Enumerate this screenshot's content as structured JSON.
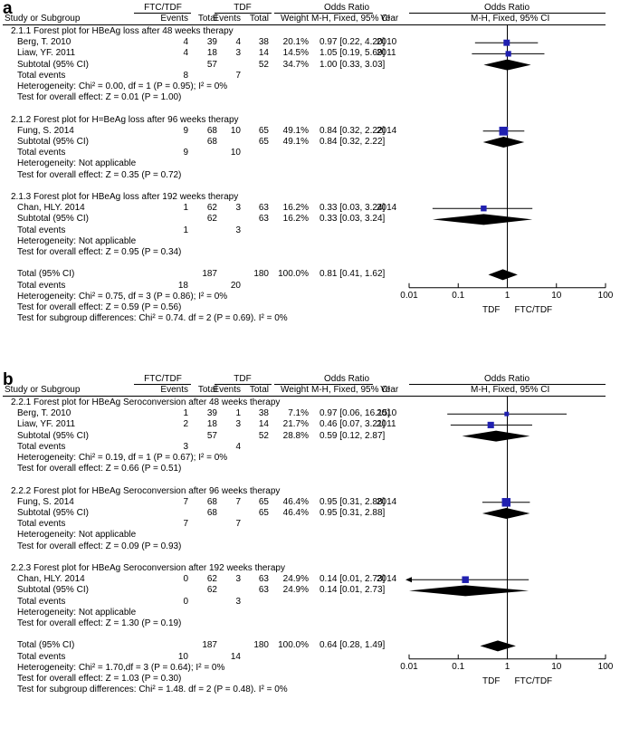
{
  "chart_data": [
    {
      "type": "forest",
      "panel": "a",
      "header": {
        "group1": "FTC/TDF",
        "group2": "TDF",
        "cols": [
          "Study or Subgroup",
          "Events",
          "Total",
          "Events",
          "Total",
          "Weight",
          "M-H, Fixed, 95% CI",
          "Year",
          "M-H, Fixed, 95% CI"
        ],
        "or_title": "Odds Ratio",
        "plot_title": "Odds Ratio"
      },
      "subgroups": [
        {
          "title": "2.1.1 Forest plot for HBeAg loss after 48 weeks therapy",
          "studies": [
            {
              "name": "Berg, T. 2010",
              "e1": "4",
              "t1": "39",
              "e2": "4",
              "t2": "38",
              "weight": "20.1%",
              "ci_text": "0.97 [0.22, 4.20]",
              "year": "2010",
              "or": 0.97,
              "lo": 0.22,
              "hi": 4.2,
              "w": 20.1
            },
            {
              "name": "Liaw, YF. 2011",
              "e1": "4",
              "t1": "18",
              "e2": "3",
              "t2": "14",
              "weight": "14.5%",
              "ci_text": "1.05 [0.19, 5.69]",
              "year": "2011",
              "or": 1.05,
              "lo": 0.19,
              "hi": 5.69,
              "w": 14.5
            }
          ],
          "subtotal": {
            "label": "Subtotal (95% CI)",
            "t1": "57",
            "t2": "52",
            "weight": "34.7%",
            "ci_text": "1.00 [0.33, 3.03]",
            "or": 1.0,
            "lo": 0.33,
            "hi": 3.03
          },
          "total_events": {
            "label": "Total events",
            "e1": "8",
            "e2": "7"
          },
          "heterogeneity": "Heterogeneity: Chi² = 0.00, df = 1 (P = 0.95); I² = 0%",
          "overall": "Test for overall effect: Z = 0.01 (P = 1.00)"
        },
        {
          "title": "2.1.2 Forest plot for H=BeAg loss after 96 weeks therapy",
          "studies": [
            {
              "name": "Fung, S. 2014",
              "e1": "9",
              "t1": "68",
              "e2": "10",
              "t2": "65",
              "weight": "49.1%",
              "ci_text": "0.84 [0.32, 2.22]",
              "year": "2014",
              "or": 0.84,
              "lo": 0.32,
              "hi": 2.22,
              "w": 49.1
            }
          ],
          "subtotal": {
            "label": "Subtotal (95% CI)",
            "t1": "68",
            "t2": "65",
            "weight": "49.1%",
            "ci_text": "0.84 [0.32, 2.22]",
            "or": 0.84,
            "lo": 0.32,
            "hi": 2.22
          },
          "total_events": {
            "label": "Total events",
            "e1": "9",
            "e2": "10"
          },
          "heterogeneity": "Heterogeneity: Not applicable",
          "overall": "Test for overall effect: Z = 0.35 (P = 0.72)"
        },
        {
          "title": "2.1.3 Forest plot for HBeAg loss after 192 weeks therapy",
          "studies": [
            {
              "name": "Chan, HLY. 2014",
              "e1": "1",
              "t1": "62",
              "e2": "3",
              "t2": "63",
              "weight": "16.2%",
              "ci_text": "0.33 [0.03, 3.24]",
              "year": "2014",
              "or": 0.33,
              "lo": 0.03,
              "hi": 3.24,
              "w": 16.2
            }
          ],
          "subtotal": {
            "label": "Subtotal (95% CI)",
            "t1": "62",
            "t2": "63",
            "weight": "16.2%",
            "ci_text": "0.33 [0.03, 3.24]",
            "or": 0.33,
            "lo": 0.03,
            "hi": 3.24
          },
          "total_events": {
            "label": "Total events",
            "e1": "1",
            "e2": "3"
          },
          "heterogeneity": "Heterogeneity: Not applicable",
          "overall": "Test for overall effect: Z = 0.95 (P = 0.34)"
        }
      ],
      "total": {
        "label": "Total (95% CI)",
        "t1": "187",
        "t2": "180",
        "weight": "100.0%",
        "ci_text": "0.81 [0.41, 1.62]",
        "or": 0.81,
        "lo": 0.41,
        "hi": 1.62
      },
      "total_events": {
        "label": "Total events",
        "e1": "18",
        "e2": "20"
      },
      "heterogeneity": "Heterogeneity: Chi² = 0.75, df = 3 (P = 0.86); I² = 0%",
      "overall": "Test for overall effect: Z = 0.59 (P = 0.56)",
      "subgroup_diff": "Test for subgroup differences: Chi² = 0.74. df = 2 (P = 0.69). I² = 0%",
      "axis": {
        "scale": "log",
        "min": 0.01,
        "max": 100,
        "ticks": [
          "0.01",
          "0.1",
          "1",
          "10",
          "100"
        ],
        "left_label": "TDF",
        "right_label": "FTC/TDF"
      }
    },
    {
      "type": "forest",
      "panel": "b",
      "header": {
        "group1": "FTC/TDF",
        "group2": "TDF",
        "cols": [
          "Study or Subgroup",
          "Events",
          "Total",
          "Events",
          "Total",
          "Weight",
          "M-H, Fixed, 95% CI",
          "Year",
          "M-H, Fixed, 95% CI"
        ],
        "or_title": "Odds Ratio",
        "plot_title": "Odds Ratio"
      },
      "subgroups": [
        {
          "title": "2.2.1 Forest plot for HBeAg Seroconversion after 48 weeks therapy",
          "studies": [
            {
              "name": "Berg, T. 2010",
              "e1": "1",
              "t1": "39",
              "e2": "1",
              "t2": "38",
              "weight": "7.1%",
              "ci_text": "0.97 [0.06, 16.15]",
              "year": "2010",
              "or": 0.97,
              "lo": 0.06,
              "hi": 16.15,
              "w": 7.1
            },
            {
              "name": "Liaw, YF. 2011",
              "e1": "2",
              "t1": "18",
              "e2": "3",
              "t2": "14",
              "weight": "21.7%",
              "ci_text": "0.46 [0.07, 3.21]",
              "year": "2011",
              "or": 0.46,
              "lo": 0.07,
              "hi": 3.21,
              "w": 21.7
            }
          ],
          "subtotal": {
            "label": "Subtotal (95% CI)",
            "t1": "57",
            "t2": "52",
            "weight": "28.8%",
            "ci_text": "0.59 [0.12, 2.87]",
            "or": 0.59,
            "lo": 0.12,
            "hi": 2.87
          },
          "total_events": {
            "label": "Total events",
            "e1": "3",
            "e2": "4"
          },
          "heterogeneity": "Heterogeneity: Chi² = 0.19, df = 1 (P = 0.67); I² = 0%",
          "overall": "Test for overall effect: Z = 0.66 (P = 0.51)"
        },
        {
          "title": "2.2.2 Forest plot for HBeAg Seroconversion after 96 weeks therapy",
          "studies": [
            {
              "name": "Fung, S. 2014",
              "e1": "7",
              "t1": "68",
              "e2": "7",
              "t2": "65",
              "weight": "46.4%",
              "ci_text": "0.95 [0.31, 2.88]",
              "year": "2014",
              "or": 0.95,
              "lo": 0.31,
              "hi": 2.88,
              "w": 46.4
            }
          ],
          "subtotal": {
            "label": "Subtotal (95% CI)",
            "t1": "68",
            "t2": "65",
            "weight": "46.4%",
            "ci_text": "0.95 [0.31, 2.88]",
            "or": 0.95,
            "lo": 0.31,
            "hi": 2.88
          },
          "total_events": {
            "label": "Total events",
            "e1": "7",
            "e2": "7"
          },
          "heterogeneity": "Heterogeneity: Not applicable",
          "overall": "Test for overall effect: Z = 0.09 (P = 0.93)"
        },
        {
          "title": "2.2.3 Forest plot for HBeAg Seroconversion after 192 weeks therapy",
          "studies": [
            {
              "name": "Chan, HLY. 2014",
              "e1": "0",
              "t1": "62",
              "e2": "3",
              "t2": "63",
              "weight": "24.9%",
              "ci_text": "0.14 [0.01, 2.73]",
              "year": "2014",
              "or": 0.14,
              "lo": 0.01,
              "hi": 2.73,
              "w": 24.9
            }
          ],
          "subtotal": {
            "label": "Subtotal (95% CI)",
            "t1": "62",
            "t2": "63",
            "weight": "24.9%",
            "ci_text": "0.14 [0.01, 2.73]",
            "or": 0.14,
            "lo": 0.01,
            "hi": 2.73
          },
          "total_events": {
            "label": "Total events",
            "e1": "0",
            "e2": "3"
          },
          "heterogeneity": "Heterogeneity: Not applicable",
          "overall": "Test for overall effect: Z = 1.30 (P = 0.19)"
        }
      ],
      "total": {
        "label": "Total (95% CI)",
        "t1": "187",
        "t2": "180",
        "weight": "100.0%",
        "ci_text": "0.64 [0.28, 1.49]",
        "or": 0.64,
        "lo": 0.28,
        "hi": 1.49
      },
      "total_events": {
        "label": "Total events",
        "e1": "10",
        "e2": "14"
      },
      "heterogeneity": "Heterogeneity: Chi² = 1.70,df = 3 (P = 0.64); I² = 0%",
      "overall": "Test for overall effect: Z = 1.03 (P = 0.30)",
      "subgroup_diff": "Test for subgroup differences: Chi² = 1.48. df = 2 (P = 0.48). I² = 0%",
      "axis": {
        "scale": "log",
        "min": 0.01,
        "max": 100,
        "ticks": [
          "0.01",
          "0.1",
          "1",
          "10",
          "100"
        ],
        "left_label": "TDF",
        "right_label": "FTC/TDF"
      }
    }
  ],
  "panel_labels": [
    "a",
    "b"
  ],
  "colors": {
    "marker": "#2020b0",
    "diamond": "#000000",
    "line": "#000000"
  }
}
